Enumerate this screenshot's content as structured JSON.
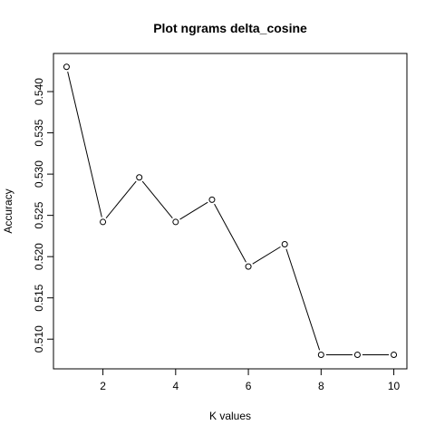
{
  "chart_data": {
    "type": "line",
    "title": "Plot ngrams delta_cosine",
    "xlabel": "K values",
    "ylabel": "Accuracy",
    "x": [
      1,
      2,
      3,
      4,
      5,
      6,
      7,
      8,
      9,
      10
    ],
    "y": [
      0.543,
      0.5242,
      0.5296,
      0.5242,
      0.5269,
      0.5188,
      0.5215,
      0.5081,
      0.5081,
      0.5081
    ],
    "xlim": [
      0.64,
      10.36
    ],
    "ylim": [
      0.5064,
      0.54462
    ],
    "xticks": [
      2,
      4,
      6,
      8,
      10
    ],
    "xtick_labels": [
      "2",
      "4",
      "6",
      "8",
      "10"
    ],
    "yticks": [
      0.51,
      0.515,
      0.52,
      0.525,
      0.53,
      0.535,
      0.54
    ],
    "ytick_labels": [
      "0.510",
      "0.515",
      "0.520",
      "0.525",
      "0.530",
      "0.535",
      "0.540"
    ],
    "marker": "open-circle",
    "grid": false,
    "colors": {
      "line": "#000000",
      "background": "#ffffff"
    }
  }
}
